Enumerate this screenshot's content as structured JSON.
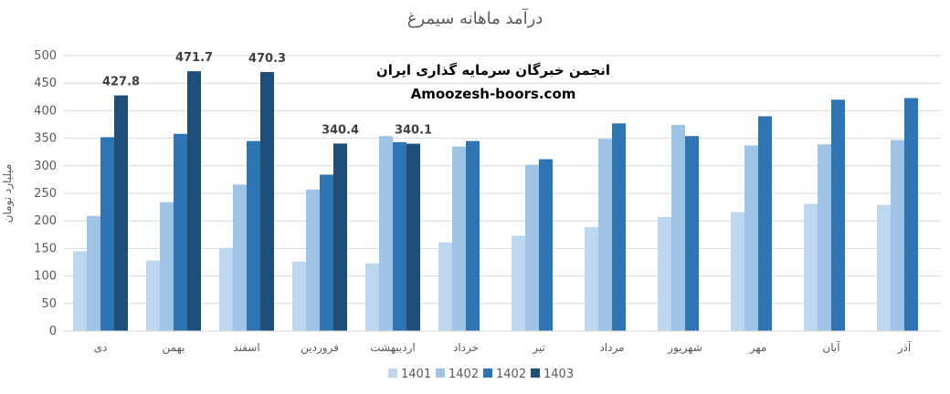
{
  "chart_data": {
    "type": "bar",
    "title": "درآمد ماهانه سیمرغ",
    "ylabel": "میلیارد تومان",
    "xlabel": "",
    "ylim": [
      0,
      500
    ],
    "yticks": [
      0,
      50,
      100,
      150,
      200,
      250,
      300,
      350,
      400,
      450,
      500
    ],
    "grid": true,
    "legend_position": "bottom",
    "categories": [
      "دی",
      "بهمن",
      "اسفند",
      "فروردین",
      "اردیبهشت",
      "خرداد",
      "تیر",
      "مرداد",
      "شهریور",
      "مهر",
      "آبان",
      "آذر"
    ],
    "series": [
      {
        "name": "1401",
        "color": "#bdd7ee",
        "values": [
          145,
          128,
          151,
          126,
          123,
          161,
          173,
          189,
          207,
          216,
          231,
          229
        ]
      },
      {
        "name": "1402",
        "color": "#9dc3e6",
        "values": [
          209,
          234,
          266,
          257,
          354,
          335,
          302,
          349,
          374,
          337,
          339,
          347
        ]
      },
      {
        "name": "1402",
        "color": "#2e75b6",
        "values": [
          352,
          358,
          345,
          284,
          343,
          345,
          312,
          377,
          354,
          390,
          420,
          423
        ]
      },
      {
        "name": "1403",
        "color": "#1f4e79",
        "values": [
          427.8,
          471.7,
          470.3,
          340.4,
          340.1,
          null,
          null,
          null,
          null,
          null,
          null,
          null
        ]
      }
    ],
    "data_labels": [
      {
        "series": 3,
        "category": 0,
        "text": "427.8"
      },
      {
        "series": 3,
        "category": 1,
        "text": "471.7"
      },
      {
        "series": 3,
        "category": 2,
        "text": "470.3"
      },
      {
        "series": 3,
        "category": 3,
        "text": "340.4"
      },
      {
        "series": 3,
        "category": 4,
        "text": "340.1"
      }
    ]
  },
  "watermark": {
    "line1": "انجمن خبرگان سرمایه گذاری ایران",
    "line2": "Amoozesh-boors.com"
  }
}
